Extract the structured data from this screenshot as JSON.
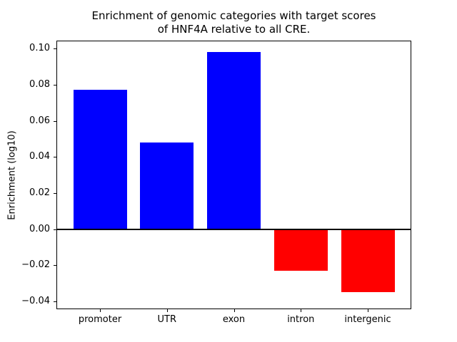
{
  "chart_data": {
    "type": "bar",
    "title_line1": "Enrichment of genomic categories with target scores",
    "title_line2": "of HNF4A relative to all CRE.",
    "ylabel": "Enrichment (log10)",
    "xlabel": "",
    "categories": [
      "promoter",
      "UTR",
      "exon",
      "intron",
      "intergenic"
    ],
    "values": [
      0.077,
      0.048,
      0.098,
      -0.023,
      -0.035
    ],
    "ylim": [
      -0.044,
      0.104
    ],
    "xlim": [
      -0.64,
      4.64
    ],
    "yticks": [
      -0.04,
      -0.02,
      0.0,
      0.02,
      0.04,
      0.06,
      0.08,
      0.1
    ],
    "bar_width_units": 0.8,
    "positive_color": "#0000ff",
    "negative_color": "#ff0000",
    "zero_line_color": "#000000",
    "grid": "off",
    "legend": "none"
  }
}
